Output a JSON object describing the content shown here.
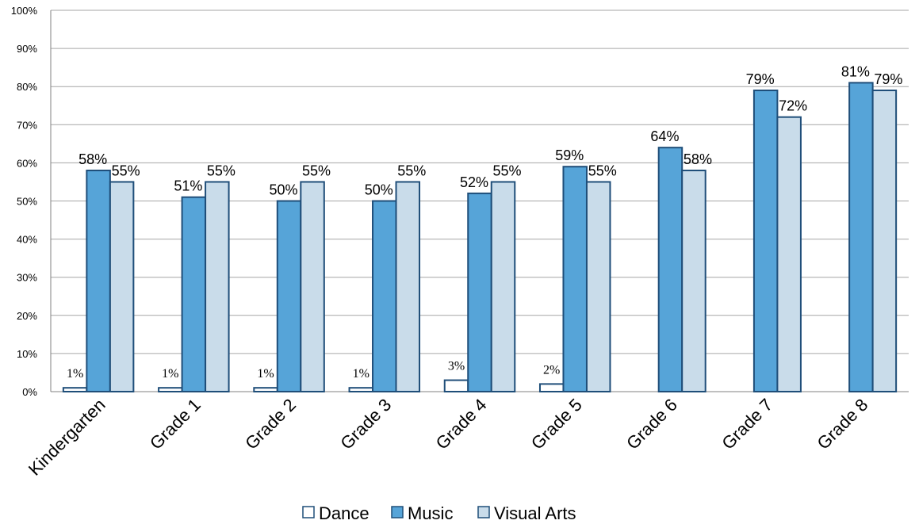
{
  "chart_data": {
    "type": "bar",
    "categories": [
      "Kindergarten",
      "Grade 1",
      "Grade 2",
      "Grade 3",
      "Grade 4",
      "Grade 5",
      "Grade 6",
      "Grade 7",
      "Grade 8"
    ],
    "series": [
      {
        "name": "Dance",
        "values": [
          1,
          1,
          1,
          1,
          3,
          2,
          null,
          null,
          null
        ],
        "labels": [
          "1%",
          "1%",
          "1%",
          "1%",
          "3%",
          "2%",
          "",
          "",
          ""
        ],
        "color": "#ffffff",
        "stroke": "#1f4e79"
      },
      {
        "name": "Music",
        "values": [
          58,
          51,
          50,
          50,
          52,
          59,
          64,
          79,
          81
        ],
        "labels": [
          "58%",
          "51%",
          "50%",
          "50%",
          "52%",
          "59%",
          "64%",
          "79%",
          "81%"
        ],
        "color": "#56a4d8",
        "stroke": "#1f4e79"
      },
      {
        "name": "Visual Arts",
        "values": [
          55,
          55,
          55,
          55,
          55,
          55,
          58,
          72,
          79
        ],
        "labels": [
          "55%",
          "55%",
          "55%",
          "55%",
          "55%",
          "55%",
          "58%",
          "72%",
          "79%"
        ],
        "color": "#c9dcea",
        "stroke": "#1f4e79"
      }
    ],
    "ylim": [
      0,
      100
    ],
    "yticks": [
      "0%",
      "10%",
      "20%",
      "30%",
      "40%",
      "50%",
      "60%",
      "70%",
      "80%",
      "90%",
      "100%"
    ],
    "grid": true,
    "legend_position": "bottom"
  }
}
